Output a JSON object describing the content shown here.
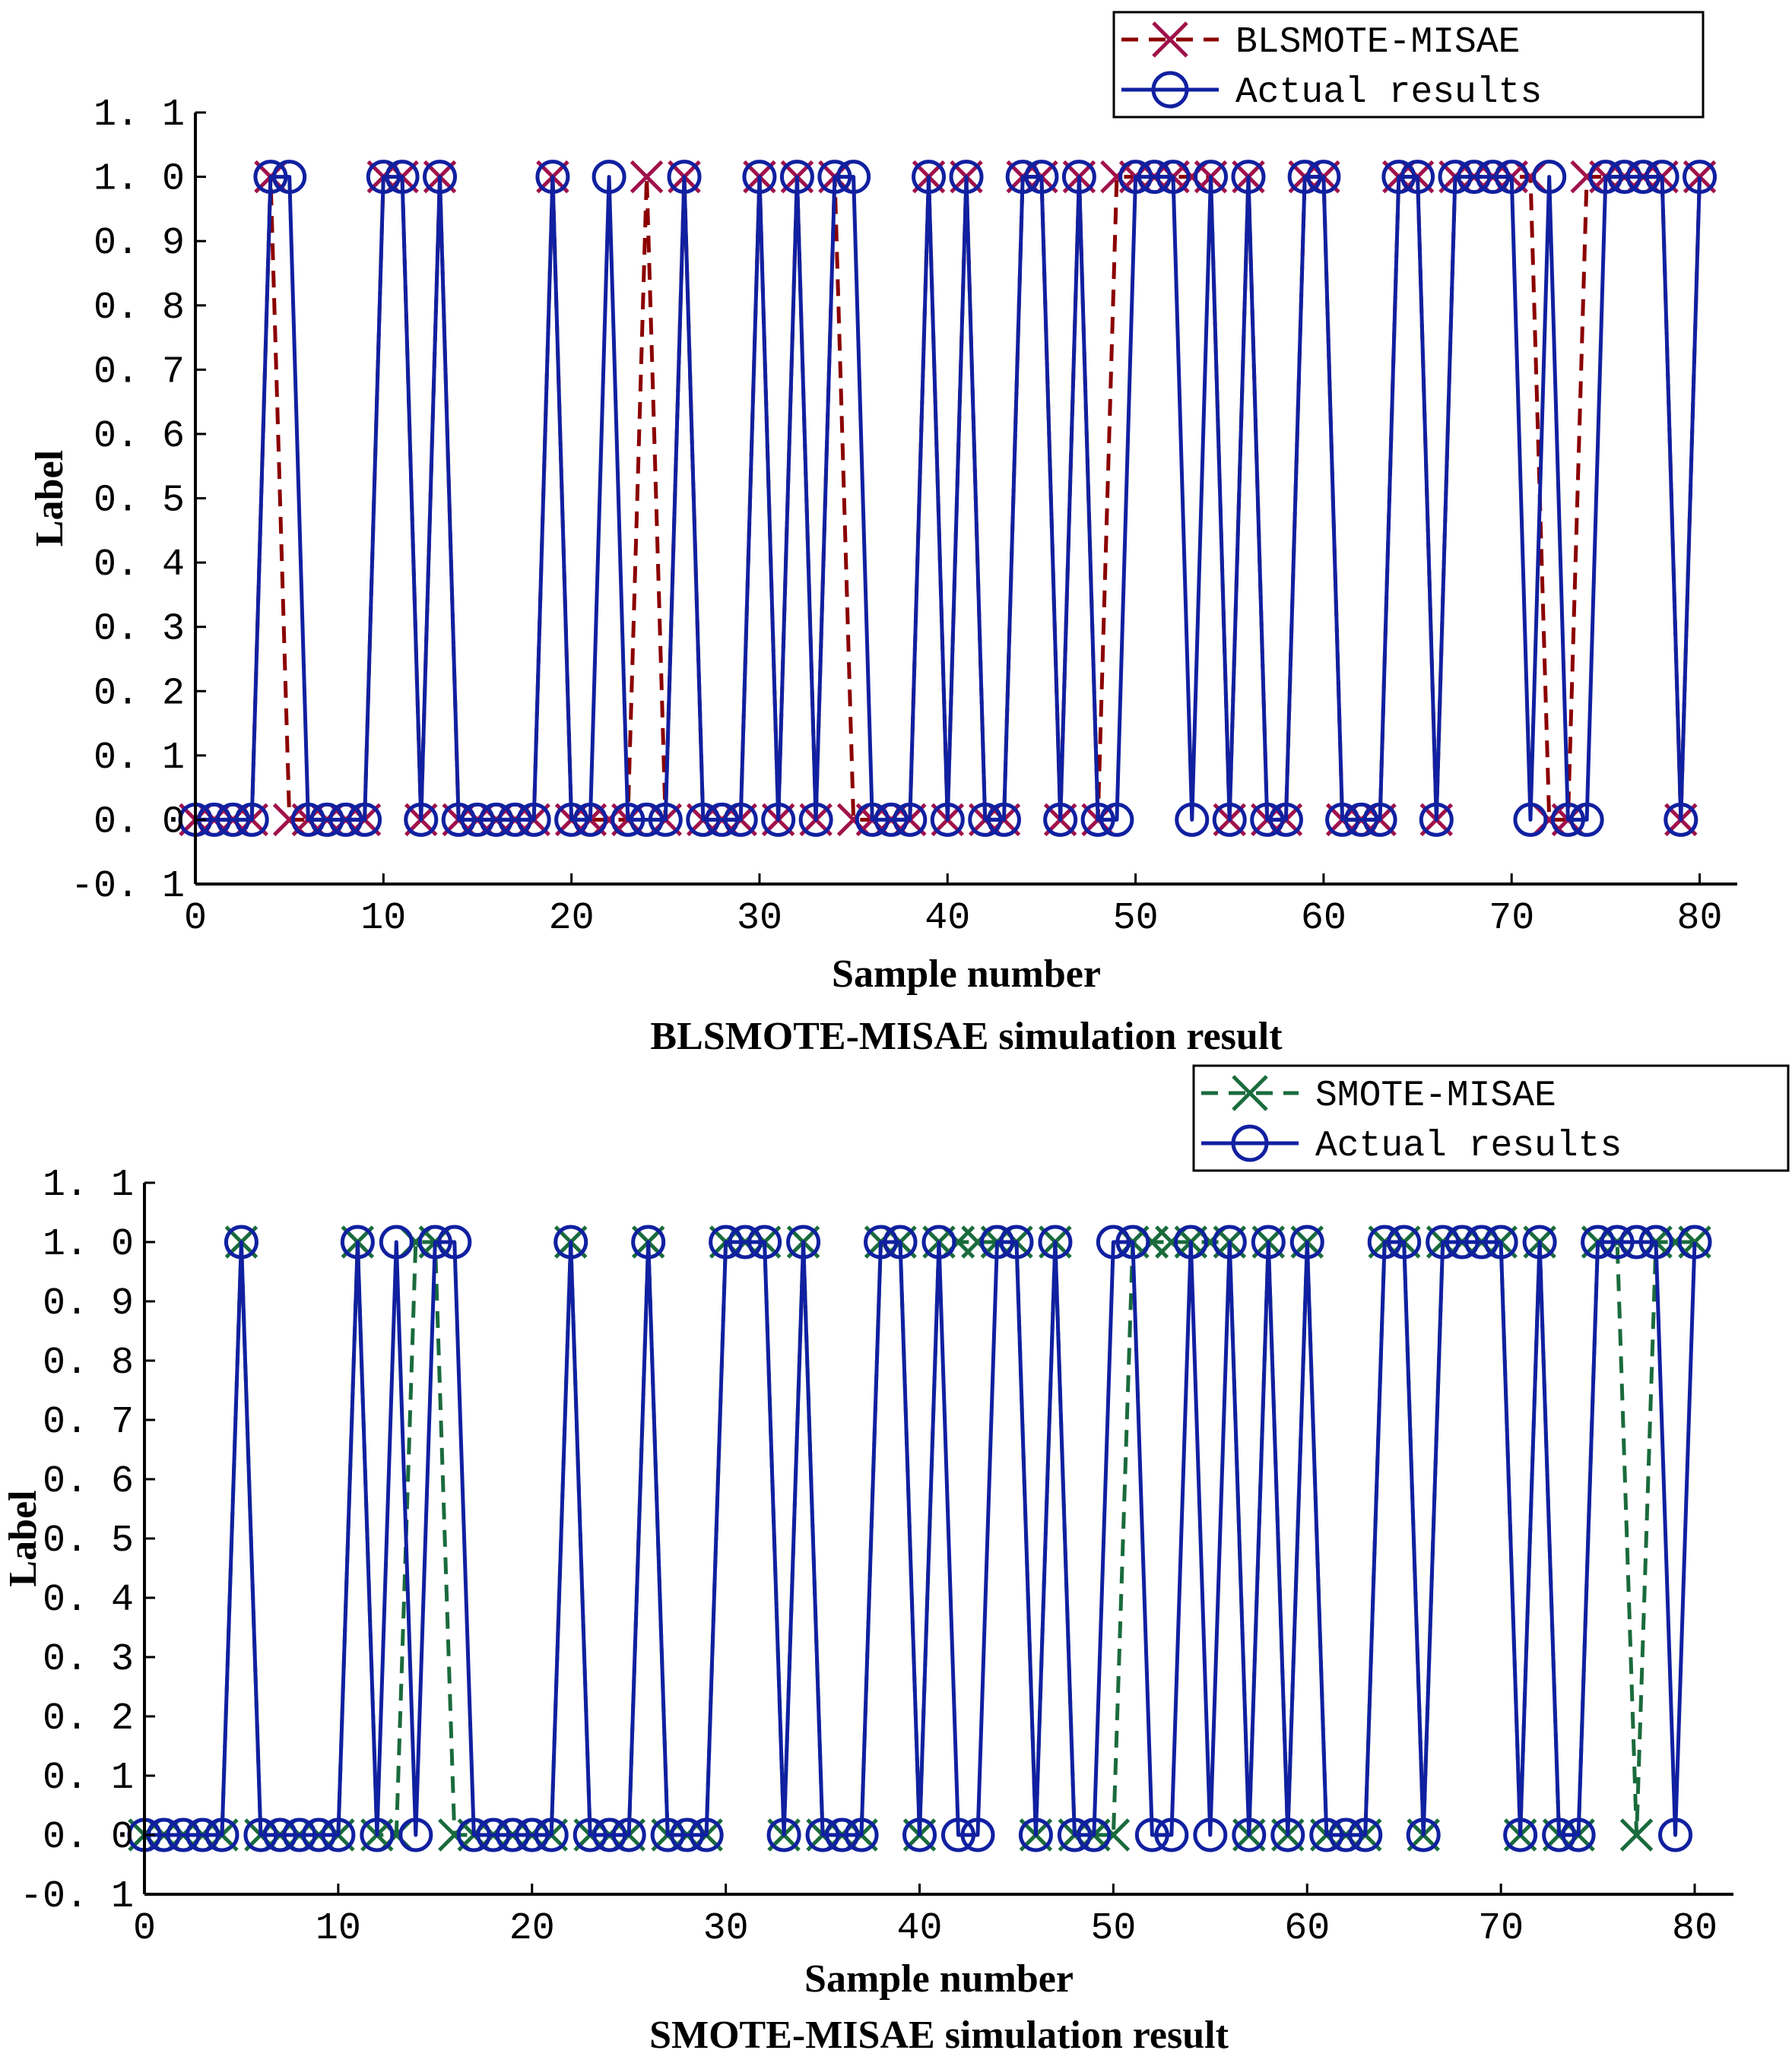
{
  "chart_data": [
    {
      "type": "line",
      "title": "BLSMOTE-MISAE simulation result",
      "xlabel": "Sample number",
      "ylabel": "Label",
      "xlim": [
        0,
        82
      ],
      "ylim": [
        -0.1,
        1.1
      ],
      "xticks": [
        "0",
        "10",
        "20",
        "30",
        "40",
        "50",
        "60",
        "70",
        "80"
      ],
      "yticks": [
        "-0.1",
        "0.0",
        "0.1",
        "0.2",
        "0.3",
        "0.4",
        "0.5",
        "0.6",
        "0.7",
        "0.8",
        "0.9",
        "1.0",
        "1.1"
      ],
      "legend_position": "top-right",
      "series": [
        {
          "name": "BLSMOTE-MISAE",
          "color": "#a0114a",
          "line_color": "#8b0000",
          "marker": "x",
          "dash": "dashed",
          "x": [
            0,
            1,
            2,
            3,
            4,
            5,
            6,
            7,
            8,
            9,
            10,
            11,
            12,
            13,
            14,
            15,
            16,
            17,
            18,
            19,
            20,
            21,
            22,
            23,
            24,
            25,
            26,
            27,
            28,
            29,
            30,
            31,
            32,
            33,
            34,
            35,
            36,
            37,
            38,
            39,
            40,
            41,
            42,
            43,
            44,
            45,
            46,
            47,
            48,
            49,
            50,
            51,
            52,
            53,
            54,
            55,
            56,
            57,
            58,
            59,
            60,
            61,
            62,
            63,
            64,
            65,
            66,
            67,
            68,
            69,
            70,
            71,
            72,
            73,
            74,
            75,
            76,
            77,
            78,
            79,
            80
          ],
          "y": [
            0,
            0,
            0,
            0,
            1,
            0,
            0,
            0,
            0,
            0,
            1,
            1,
            0,
            1,
            0,
            0,
            0,
            0,
            0,
            1,
            0,
            0,
            0,
            0,
            1,
            0,
            1,
            0,
            0,
            0,
            1,
            0,
            1,
            0,
            1,
            0,
            0,
            0,
            0,
            1,
            0,
            1,
            0,
            0,
            1,
            1,
            0,
            1,
            0,
            1,
            1,
            1,
            1,
            1,
            1,
            0,
            1,
            0,
            0,
            1,
            1,
            0,
            0,
            0,
            1,
            1,
            0,
            1,
            1,
            1,
            1,
            1,
            0,
            0,
            1,
            1,
            1,
            1,
            1,
            0,
            1
          ]
        },
        {
          "name": "Actual results",
          "color": "#1020a0",
          "line_color": "#1020a0",
          "marker": "o",
          "dash": "solid",
          "x": [
            0,
            1,
            2,
            3,
            4,
            5,
            6,
            7,
            8,
            9,
            10,
            11,
            12,
            13,
            14,
            15,
            16,
            17,
            18,
            19,
            20,
            21,
            22,
            23,
            24,
            25,
            26,
            27,
            28,
            29,
            30,
            31,
            32,
            33,
            34,
            35,
            36,
            37,
            38,
            39,
            40,
            41,
            42,
            43,
            44,
            45,
            46,
            47,
            48,
            49,
            50,
            51,
            52,
            53,
            54,
            55,
            56,
            57,
            58,
            59,
            60,
            61,
            62,
            63,
            64,
            65,
            66,
            67,
            68,
            69,
            70,
            71,
            72,
            73,
            74,
            75,
            76,
            77,
            78,
            79,
            80
          ],
          "y": [
            0,
            0,
            0,
            0,
            1,
            1,
            0,
            0,
            0,
            0,
            1,
            1,
            0,
            1,
            0,
            0,
            0,
            0,
            0,
            1,
            0,
            0,
            1,
            0,
            0,
            0,
            1,
            0,
            0,
            0,
            1,
            0,
            1,
            0,
            1,
            1,
            0,
            0,
            0,
            1,
            0,
            1,
            0,
            0,
            1,
            1,
            0,
            1,
            0,
            0,
            1,
            1,
            1,
            0,
            1,
            0,
            1,
            0,
            0,
            1,
            1,
            0,
            0,
            0,
            1,
            1,
            0,
            1,
            1,
            1,
            1,
            0,
            1,
            0,
            0,
            1,
            1,
            1,
            1,
            0,
            1
          ]
        }
      ]
    },
    {
      "type": "line",
      "title": "SMOTE-MISAE simulation result",
      "xlabel": "Sample number",
      "ylabel": "Label",
      "xlim": [
        0,
        82
      ],
      "ylim": [
        -0.1,
        1.1
      ],
      "xticks": [
        "0",
        "10",
        "20",
        "30",
        "40",
        "50",
        "60",
        "70",
        "80"
      ],
      "yticks": [
        "-0.1",
        "0.0",
        "0.1",
        "0.2",
        "0.3",
        "0.4",
        "0.5",
        "0.6",
        "0.7",
        "0.8",
        "0.9",
        "1.0",
        "1.1"
      ],
      "legend_position": "top-right",
      "series": [
        {
          "name": "SMOTE-MISAE",
          "color": "#1a6b3c",
          "line_color": "#1a6b3c",
          "marker": "x",
          "dash": "dashed",
          "x": [
            0,
            1,
            2,
            3,
            4,
            5,
            6,
            7,
            8,
            9,
            10,
            11,
            12,
            13,
            14,
            15,
            16,
            17,
            18,
            19,
            20,
            21,
            22,
            23,
            24,
            25,
            26,
            27,
            28,
            29,
            30,
            31,
            32,
            33,
            34,
            35,
            36,
            37,
            38,
            39,
            40,
            41,
            42,
            43,
            44,
            45,
            46,
            47,
            48,
            49,
            50,
            51,
            52,
            53,
            54,
            55,
            56,
            57,
            58,
            59,
            60,
            61,
            62,
            63,
            64,
            65,
            66,
            67,
            68,
            69,
            70,
            71,
            72,
            73,
            74,
            75,
            76,
            77,
            78,
            79,
            80
          ],
          "y": [
            0,
            0,
            0,
            0,
            0,
            1,
            0,
            0,
            0,
            0,
            0,
            1,
            0,
            0,
            1,
            1,
            0,
            0,
            0,
            0,
            0,
            0,
            1,
            0,
            0,
            0,
            1,
            0,
            0,
            0,
            1,
            1,
            1,
            0,
            1,
            0,
            0,
            0,
            1,
            1,
            0,
            1,
            1,
            1,
            1,
            1,
            0,
            1,
            0,
            0,
            0,
            1,
            1,
            1,
            1,
            1,
            1,
            0,
            1,
            0,
            1,
            0,
            0,
            0,
            1,
            1,
            0,
            1,
            1,
            1,
            1,
            0,
            1,
            0,
            0,
            1,
            1,
            0,
            1,
            1,
            1
          ]
        },
        {
          "name": "Actual results",
          "color": "#1020a0",
          "line_color": "#1020a0",
          "marker": "o",
          "dash": "solid",
          "x": [
            0,
            1,
            2,
            3,
            4,
            5,
            6,
            7,
            8,
            9,
            10,
            11,
            12,
            13,
            14,
            15,
            16,
            17,
            18,
            19,
            20,
            21,
            22,
            23,
            24,
            25,
            26,
            27,
            28,
            29,
            30,
            31,
            32,
            33,
            34,
            35,
            36,
            37,
            38,
            39,
            40,
            41,
            42,
            43,
            44,
            45,
            46,
            47,
            48,
            49,
            50,
            51,
            52,
            53,
            54,
            55,
            56,
            57,
            58,
            59,
            60,
            61,
            62,
            63,
            64,
            65,
            66,
            67,
            68,
            69,
            70,
            71,
            72,
            73,
            74,
            75,
            76,
            77,
            78,
            79,
            80
          ],
          "y": [
            0,
            0,
            0,
            0,
            0,
            1,
            0,
            0,
            0,
            0,
            0,
            1,
            0,
            1,
            0,
            1,
            1,
            0,
            0,
            0,
            0,
            0,
            1,
            0,
            0,
            0,
            1,
            0,
            0,
            0,
            1,
            1,
            1,
            0,
            1,
            0,
            0,
            0,
            1,
            1,
            0,
            1,
            0,
            0,
            1,
            1,
            0,
            1,
            0,
            0,
            1,
            1,
            0,
            0,
            1,
            0,
            1,
            0,
            1,
            0,
            1,
            0,
            0,
            0,
            1,
            1,
            0,
            1,
            1,
            1,
            1,
            0,
            1,
            0,
            0,
            1,
            1,
            1,
            1,
            0,
            1
          ]
        }
      ]
    }
  ]
}
